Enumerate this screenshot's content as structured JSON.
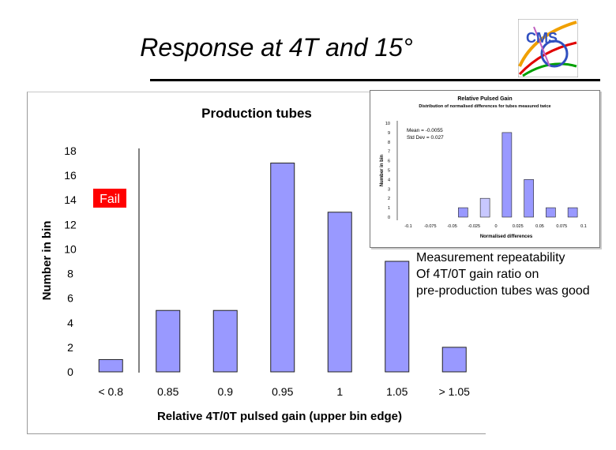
{
  "slide": {
    "title": "Response at 4T and 15°",
    "logo_text": "CMS",
    "note_lines": [
      "Measurement repeatability",
      "Of 4T/0T gain ratio on",
      "pre-production tubes was good"
    ]
  },
  "colors": {
    "bar_fill": "#9999ff",
    "bar_stroke": "#222222",
    "fail_bg": "#ff0000",
    "fail_text": "#ffffff"
  },
  "chart_data": [
    {
      "type": "bar",
      "title": "Production tubes",
      "xlabel": "Relative 4T/0T pulsed gain (upper bin edge)",
      "ylabel": "Number in bin",
      "categories": [
        "< 0.8",
        "0.85",
        "0.9",
        "0.95",
        "1",
        "1.05",
        "> 1.05"
      ],
      "values": [
        1,
        5,
        5,
        17,
        13,
        9,
        2
      ],
      "ylim": [
        0,
        18
      ],
      "y_ticks": [
        0,
        2,
        4,
        6,
        8,
        10,
        12,
        14,
        16,
        18
      ],
      "annotation": "Fail",
      "grid": false
    },
    {
      "type": "bar",
      "title": "Relative Pulsed Gain",
      "subtitle": "Distribution of normalised differences for tubes measured twice",
      "xlabel": "Normalised differences",
      "ylabel": "Number in bin",
      "categories": [
        "-0.1",
        "-0.075",
        "-0.05",
        "-0.025",
        "0",
        "0.025",
        "0.05",
        "0.075",
        "0.1"
      ],
      "values": [
        0,
        0,
        1,
        2,
        9,
        4,
        1,
        1,
        0
      ],
      "highlight_index": 3,
      "ylim": [
        0,
        10
      ],
      "y_ticks": [
        0,
        1,
        2,
        3,
        4,
        5,
        6,
        7,
        8,
        9,
        10
      ],
      "annotations": [
        "Mean = -0.0055",
        "Std Dev = 0.027"
      ],
      "grid": false
    }
  ]
}
